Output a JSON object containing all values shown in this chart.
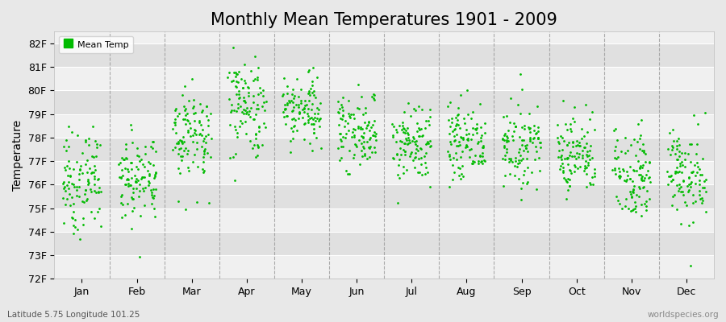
{
  "title": "Monthly Mean Temperatures 1901 - 2009",
  "ylabel": "Temperature",
  "subtitle": "Latitude 5.75 Longitude 101.25",
  "watermark": "worldspecies.org",
  "start_year": 1901,
  "end_year": 2009,
  "months": [
    "Jan",
    "Feb",
    "Mar",
    "Apr",
    "May",
    "Jun",
    "Jul",
    "Aug",
    "Sep",
    "Oct",
    "Nov",
    "Dec"
  ],
  "month_means_F": [
    76.1,
    76.3,
    78.2,
    79.3,
    79.2,
    78.3,
    77.7,
    77.8,
    77.7,
    77.3,
    76.5,
    76.4
  ],
  "month_stds_F": [
    1.05,
    0.95,
    1.05,
    1.1,
    0.85,
    0.8,
    0.8,
    0.8,
    0.8,
    0.85,
    0.95,
    1.0
  ],
  "ylim_min": 72,
  "ylim_max": 82.5,
  "yticks": [
    72,
    73,
    74,
    75,
    76,
    77,
    78,
    79,
    80,
    81,
    82
  ],
  "dot_color": "#00BB00",
  "dot_size": 4,
  "bg_color": "#E8E8E8",
  "band_light": "#F0F0F0",
  "band_dark": "#E0E0E0",
  "grid_line_color": "#CCCCCC",
  "dashed_line_color": "#999999",
  "title_fontsize": 15,
  "label_fontsize": 10,
  "tick_fontsize": 9
}
